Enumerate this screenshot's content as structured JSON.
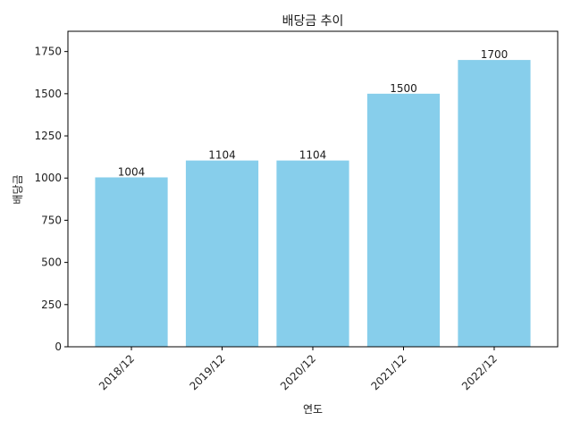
{
  "chart_data": {
    "type": "bar",
    "title": "배당금 추이",
    "xlabel": "연도",
    "ylabel": "배당금",
    "categories": [
      "2018/12",
      "2019/12",
      "2020/12",
      "2021/12",
      "2022/12"
    ],
    "values": [
      1004,
      1104,
      1104,
      1500,
      1700
    ],
    "data_labels": [
      "1004",
      "1104",
      "1104",
      "1500",
      "1700"
    ],
    "ylim": [
      0,
      1870
    ],
    "yticks": [
      0,
      250,
      500,
      750,
      1000,
      1250,
      1500,
      1750
    ],
    "ytick_labels": [
      "0",
      "250",
      "500",
      "750",
      "1000",
      "1250",
      "1500",
      "1750"
    ],
    "bar_color": "#87CEEB",
    "grid": false,
    "legend": "none",
    "xtick_rotation": 45
  }
}
